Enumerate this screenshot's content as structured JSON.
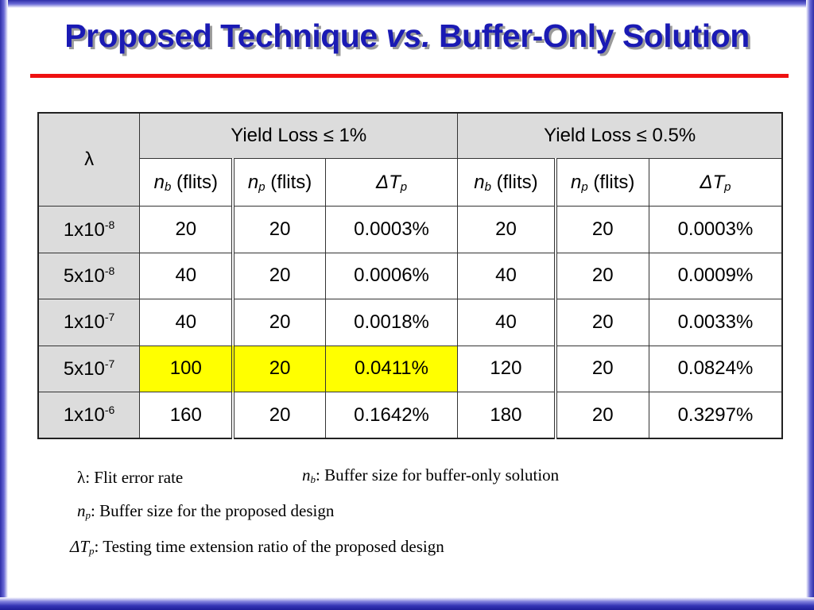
{
  "slide": {
    "title_part1": "Proposed Technique ",
    "title_vs": "vs.",
    "title_part2": " Buffer-Only Solution",
    "colors": {
      "title": "#1a1ab4",
      "rule": "#ee1111",
      "frame": "#2e2ea8",
      "highlight": "#ffff00",
      "header_bg": "#dcdcdc"
    }
  },
  "table": {
    "lambda_header": "λ",
    "group1": "Yield Loss ≤ 1%",
    "group2": "Yield Loss ≤ 0.5%",
    "sub_headers": {
      "nb_main": "n",
      "nb_sub": "b",
      "nb_unit": " (flits)",
      "np_main": "n",
      "np_sub": "p",
      "np_unit": " (flits)",
      "dt_main": "ΔT",
      "dt_sub": "p"
    },
    "rows": [
      {
        "lambda_base": "1x10",
        "lambda_exp": "-8",
        "g1_nb": "20",
        "g1_np": "20",
        "g1_dt": "0.0003%",
        "g2_nb": "20",
        "g2_np": "20",
        "g2_dt": "0.0003%",
        "highlight_g1": false
      },
      {
        "lambda_base": "5x10",
        "lambda_exp": "-8",
        "g1_nb": "40",
        "g1_np": "20",
        "g1_dt": "0.0006%",
        "g2_nb": "40",
        "g2_np": "20",
        "g2_dt": "0.0009%",
        "highlight_g1": false
      },
      {
        "lambda_base": "1x10",
        "lambda_exp": "-7",
        "g1_nb": "40",
        "g1_np": "20",
        "g1_dt": "0.0018%",
        "g2_nb": "40",
        "g2_np": "20",
        "g2_dt": "0.0033%",
        "highlight_g1": false
      },
      {
        "lambda_base": "5x10",
        "lambda_exp": "-7",
        "g1_nb": "100",
        "g1_np": "20",
        "g1_dt": "0.0411%",
        "g2_nb": "120",
        "g2_np": "20",
        "g2_dt": "0.0824%",
        "highlight_g1": true
      },
      {
        "lambda_base": "1x10",
        "lambda_exp": "-6",
        "g1_nb": "160",
        "g1_np": "20",
        "g1_dt": "0.1642%",
        "g2_nb": "180",
        "g2_np": "20",
        "g2_dt": "0.3297%",
        "highlight_g1": false
      }
    ]
  },
  "legend": {
    "lambda_sym": "λ",
    "lambda_text": ":  Flit error rate",
    "nb_sym": "n",
    "nb_sub": "b",
    "nb_text": ":  Buffer size for buffer-only solution",
    "np_sym": "n",
    "np_sub": "p",
    "np_text": ":  Buffer size for the proposed design",
    "dt_sym": "ΔT",
    "dt_sub": "p",
    "dt_text": ":  Testing time extension ratio of the proposed design"
  }
}
